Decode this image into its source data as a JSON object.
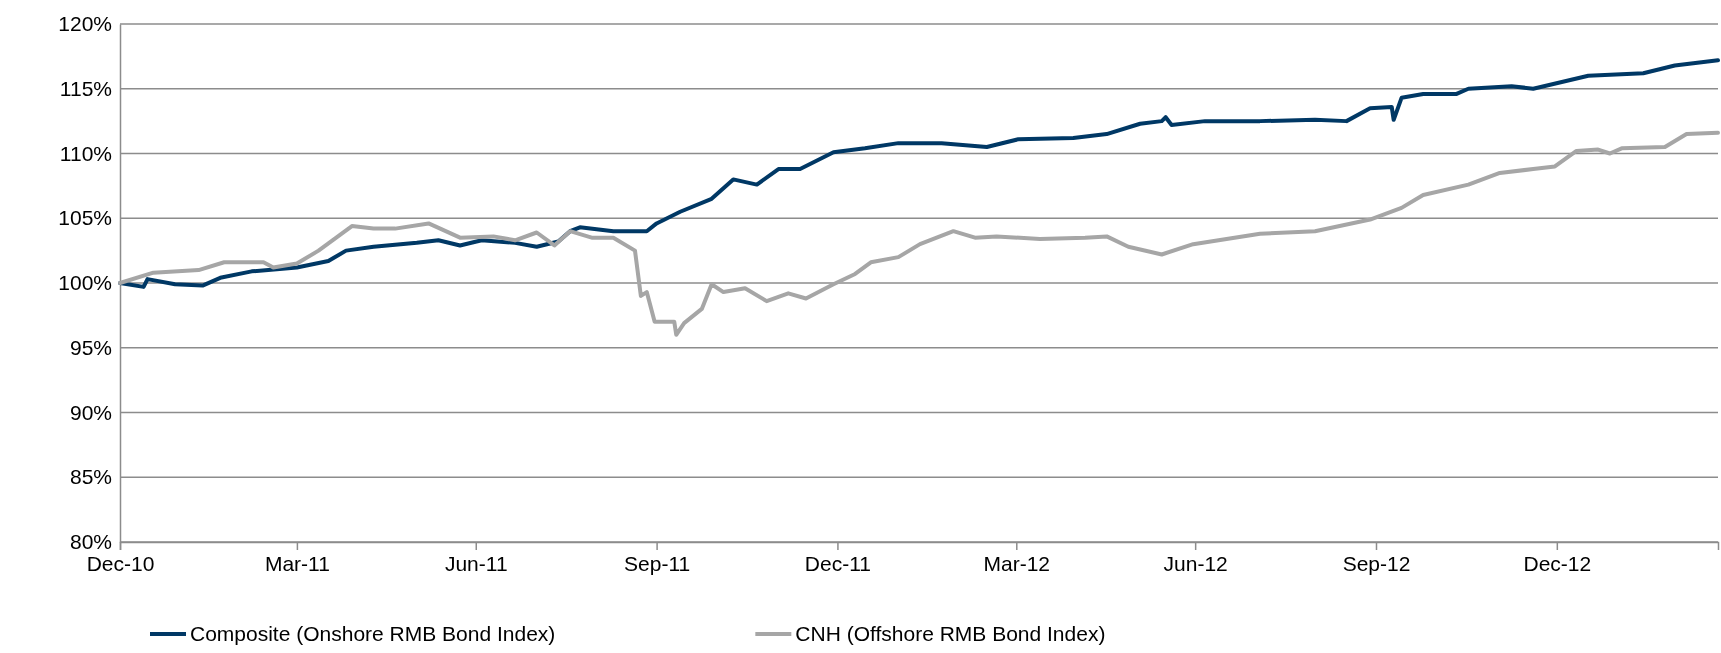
{
  "chart_data": {
    "type": "line",
    "xlim": [
      "2010-12-31",
      "2013-03-23"
    ],
    "ylim": [
      80,
      120
    ],
    "xticks": [
      {
        "value": "2010-12-31",
        "label": "Dec-10"
      },
      {
        "value": "2011-03-31",
        "label": "Mar-11"
      },
      {
        "value": "2011-06-30",
        "label": "Jun-11"
      },
      {
        "value": "2011-09-30",
        "label": "Sep-11"
      },
      {
        "value": "2011-12-31",
        "label": "Dec-11"
      },
      {
        "value": "2012-03-31",
        "label": "Mar-12"
      },
      {
        "value": "2012-06-30",
        "label": "Jun-12"
      },
      {
        "value": "2012-09-30",
        "label": "Sep-12"
      },
      {
        "value": "2012-12-31",
        "label": "Dec-12"
      }
    ],
    "yticks": [
      {
        "value": 80,
        "label": "80%"
      },
      {
        "value": 85,
        "label": "85%"
      },
      {
        "value": 90,
        "label": "90%"
      },
      {
        "value": 95,
        "label": "95%"
      },
      {
        "value": 100,
        "label": "100%"
      },
      {
        "value": 105,
        "label": "105%"
      },
      {
        "value": 110,
        "label": "110%"
      },
      {
        "value": 115,
        "label": "115%"
      },
      {
        "value": 120,
        "label": "120%"
      }
    ],
    "grid": "y",
    "legend": "bottom",
    "marker": "none",
    "line_style": "solid",
    "series": [
      {
        "name": "Composite (Onshore RMB Bond Index)",
        "color": "#003865",
        "x": [
          "2010-12-31",
          "2011-01-12",
          "2011-01-14",
          "2011-01-28",
          "2011-02-11",
          "2011-02-20",
          "2011-03-08",
          "2011-03-31",
          "2011-04-16",
          "2011-04-25",
          "2011-05-09",
          "2011-05-31",
          "2011-06-11",
          "2011-06-22",
          "2011-07-03",
          "2011-07-20",
          "2011-07-31",
          "2011-08-11",
          "2011-08-17",
          "2011-08-22",
          "2011-09-08",
          "2011-09-25",
          "2011-09-30",
          "2011-10-12",
          "2011-10-28",
          "2011-11-08",
          "2011-11-20",
          "2011-12-01",
          "2011-12-12",
          "2011-12-29",
          "2012-01-14",
          "2012-01-31",
          "2012-02-22",
          "2012-03-16",
          "2012-04-01",
          "2012-04-29",
          "2012-05-16",
          "2012-06-02",
          "2012-06-13",
          "2012-06-15",
          "2012-06-18",
          "2012-07-05",
          "2012-08-02",
          "2012-08-30",
          "2012-09-15",
          "2012-09-27",
          "2012-10-08",
          "2012-10-09",
          "2012-10-13",
          "2012-10-24",
          "2012-11-10",
          "2012-11-16",
          "2012-12-08",
          "2012-12-19",
          "2013-01-16",
          "2013-02-13",
          "2013-03-01",
          "2013-03-23"
        ],
        "values": [
          100,
          99.7,
          100.3,
          99.9,
          99.8,
          100.4,
          100.9,
          101.2,
          101.7,
          102.5,
          102.8,
          103.1,
          103.3,
          102.9,
          103.3,
          103.1,
          102.8,
          103.2,
          104,
          104.3,
          104,
          104,
          104.6,
          105.5,
          106.5,
          108,
          107.6,
          108.8,
          108.8,
          110.1,
          110.4,
          110.8,
          110.8,
          110.5,
          111.1,
          111.2,
          111.5,
          112.3,
          112.5,
          112.8,
          112.2,
          112.5,
          112.5,
          112.6,
          112.5,
          113.5,
          113.6,
          112.6,
          114.3,
          114.6,
          114.6,
          115,
          115.2,
          115,
          116,
          116.2,
          116.8,
          117.2
        ]
      },
      {
        "name": "CNH (Offshore RMB Bond Index)",
        "color": "#a6a6a6",
        "x": [
          "2010-12-31",
          "2011-01-17",
          "2011-02-09",
          "2011-02-22",
          "2011-03-14",
          "2011-03-19",
          "2011-03-31",
          "2011-04-11",
          "2011-04-28",
          "2011-05-09",
          "2011-05-20",
          "2011-06-06",
          "2011-06-22",
          "2011-07-09",
          "2011-07-20",
          "2011-07-31",
          "2011-08-09",
          "2011-08-17",
          "2011-08-28",
          "2011-09-08",
          "2011-09-19",
          "2011-09-22",
          "2011-09-25",
          "2011-09-29",
          "2011-10-09",
          "2011-10-10",
          "2011-10-14",
          "2011-10-23",
          "2011-10-28",
          "2011-11-03",
          "2011-11-14",
          "2011-11-25",
          "2011-12-06",
          "2011-12-15",
          "2011-12-29",
          "2012-01-09",
          "2012-01-17",
          "2012-01-31",
          "2012-02-11",
          "2012-02-28",
          "2012-03-10",
          "2012-03-21",
          "2012-04-12",
          "2012-05-05",
          "2012-05-16",
          "2012-05-27",
          "2012-06-13",
          "2012-06-29",
          "2012-07-16",
          "2012-08-02",
          "2012-08-30",
          "2012-09-27",
          "2012-10-13",
          "2012-10-24",
          "2012-11-16",
          "2012-12-02",
          "2012-12-19",
          "2012-12-30",
          "2013-01-10",
          "2013-01-21",
          "2013-01-27",
          "2013-02-02",
          "2013-02-24",
          "2013-03-07",
          "2013-03-23"
        ],
        "values": [
          100,
          100.8,
          101,
          101.6,
          101.6,
          101.2,
          101.5,
          102.5,
          104.4,
          104.2,
          104.2,
          104.6,
          103.5,
          103.6,
          103.3,
          103.9,
          102.9,
          104,
          103.5,
          103.5,
          102.5,
          99,
          99.3,
          97,
          97,
          96,
          96.9,
          98,
          99.9,
          99.3,
          99.6,
          98.6,
          99.2,
          98.8,
          99.9,
          100.7,
          101.6,
          102,
          103,
          104,
          103.5,
          103.6,
          103.4,
          103.5,
          103.6,
          102.8,
          102.2,
          103,
          103.4,
          103.8,
          104,
          104.9,
          105.8,
          106.8,
          107.6,
          108.5,
          108.8,
          109,
          110.2,
          110.3,
          110,
          110.4,
          110.5,
          111.5,
          111.6
        ]
      }
    ]
  }
}
